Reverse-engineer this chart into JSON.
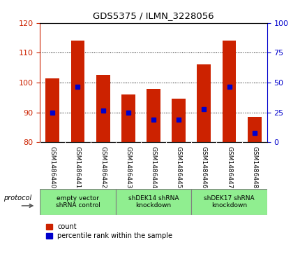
{
  "title": "GDS5375 / ILMN_3228056",
  "samples": [
    "GSM1486440",
    "GSM1486441",
    "GSM1486442",
    "GSM1486443",
    "GSM1486444",
    "GSM1486445",
    "GSM1486446",
    "GSM1486447",
    "GSM1486448"
  ],
  "bar_tops": [
    101.5,
    114.0,
    102.5,
    96.0,
    98.0,
    94.5,
    106.0,
    114.0,
    88.5
  ],
  "bar_bottom": 80,
  "blue_values": [
    90.0,
    98.5,
    90.5,
    90.0,
    87.5,
    87.5,
    91.0,
    98.5,
    83.0
  ],
  "ylim_left": [
    80,
    120
  ],
  "ylim_right": [
    0,
    100
  ],
  "yticks_left": [
    80,
    90,
    100,
    110,
    120
  ],
  "yticks_right": [
    0,
    25,
    50,
    75,
    100
  ],
  "bar_color": "#cc2200",
  "blue_color": "#0000cc",
  "groups": [
    {
      "label": "empty vector\nshRNA control",
      "start": 0,
      "end": 3,
      "color": "#90ee90"
    },
    {
      "label": "shDEK14 shRNA\nknockdown",
      "start": 3,
      "end": 6,
      "color": "#90ee90"
    },
    {
      "label": "shDEK17 shRNA\nknockdown",
      "start": 6,
      "end": 9,
      "color": "#90ee90"
    }
  ],
  "legend_count_label": "count",
  "legend_pct_label": "percentile rank within the sample",
  "protocol_label": "protocol",
  "fig_width": 4.4,
  "fig_height": 3.63
}
